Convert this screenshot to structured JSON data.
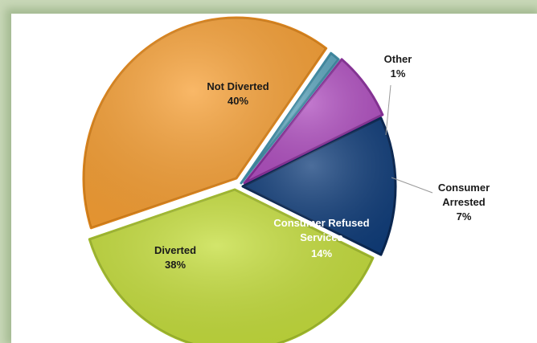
{
  "chart_data": {
    "type": "pie",
    "title": "",
    "slices": [
      {
        "label": "Not Diverted",
        "value": 40,
        "display": "40%",
        "color": "#f7a035",
        "edge": "#d9821a"
      },
      {
        "label": "Other",
        "value": 1,
        "display": "1%",
        "color": "#5fa8c0",
        "edge": "#3f8aa2"
      },
      {
        "label": "Consumer Arrested",
        "value": 7,
        "display": "7%",
        "color": "#b04fc0",
        "edge": "#862f96"
      },
      {
        "label": "Consumer Refused Services",
        "value": 14,
        "display": "14%",
        "color": "#103d7a",
        "edge": "#0a2752"
      },
      {
        "label": "Diverted",
        "value": 38,
        "display": "38%",
        "color": "#c4dd3a",
        "edge": "#9fb82a"
      }
    ]
  },
  "labels": {
    "not_diverted": {
      "name": "Not Diverted",
      "pct": "40%"
    },
    "other": {
      "name": "Other",
      "pct": "1%"
    },
    "arrested": {
      "line1": "Consumer",
      "line2": "Arrested",
      "pct": "7%"
    },
    "refused": {
      "line1": "Consumer Refused",
      "line2": "Services",
      "pct": "14%"
    },
    "diverted": {
      "name": "Diverted",
      "pct": "38%"
    }
  }
}
